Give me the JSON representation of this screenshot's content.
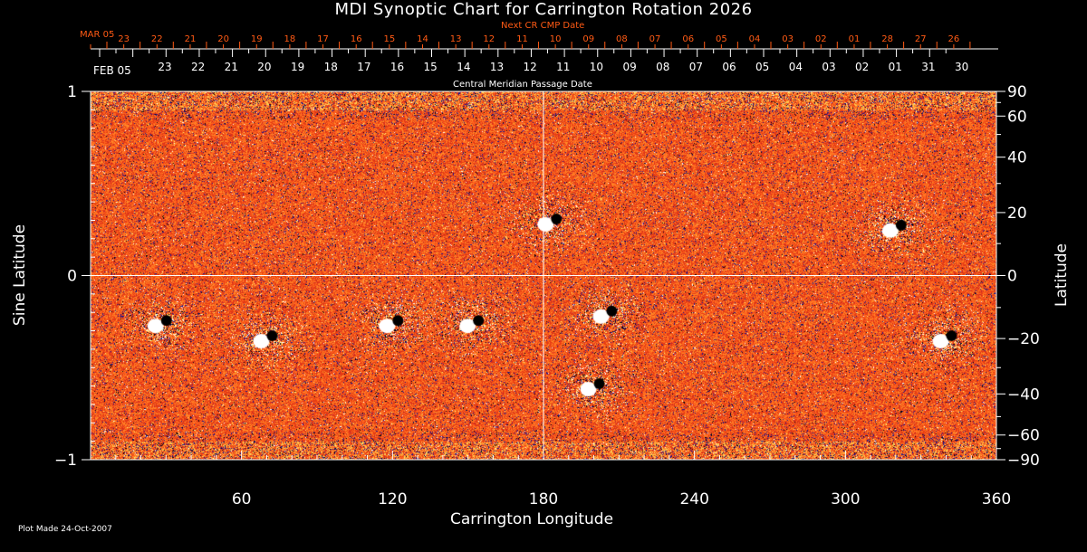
{
  "title": "MDI Synoptic Chart for Carrington Rotation 2026",
  "top_axis": {
    "next_label": "Next CR CMP Date",
    "next_dates": [
      "MAR 05",
      "23",
      "22",
      "21",
      "20",
      "19",
      "18",
      "17",
      "16",
      "15",
      "14",
      "13",
      "12",
      "11",
      "10",
      "09",
      "08",
      "07",
      "06",
      "05",
      "04",
      "03",
      "02",
      "01",
      "28",
      "27",
      "26"
    ],
    "cmp_label": "Central Meridian Passage Date",
    "cmp_dates": [
      "FEB 05",
      "23",
      "22",
      "21",
      "20",
      "19",
      "18",
      "17",
      "16",
      "15",
      "14",
      "13",
      "12",
      "11",
      "10",
      "09",
      "08",
      "07",
      "06",
      "05",
      "04",
      "03",
      "02",
      "01",
      "31",
      "30"
    ]
  },
  "footer": "Plot Made 24-Oct-2007",
  "colors": {
    "next_axis": "#ff5a14",
    "background": "#000000",
    "field_base": "#ff5a14",
    "positive": "#ffffff",
    "negative": "#000080"
  },
  "chart_data": {
    "type": "heatmap",
    "title": "MDI Synoptic Chart for Carrington Rotation 2026",
    "xlabel": "Carrington Longitude",
    "ylabel_left": "Sine Latitude",
    "ylabel_right": "Latitude",
    "xlim": [
      0,
      360
    ],
    "ylim": [
      -1,
      1
    ],
    "x_ticks": [
      "60",
      "120",
      "180",
      "240",
      "300",
      "360"
    ],
    "y_ticks_left": [
      "1",
      "0",
      "−1"
    ],
    "y_ticks_right": [
      "90",
      "60",
      "40",
      "20",
      "0",
      "−20",
      "−40",
      "−60",
      "−90"
    ],
    "grid": "crosshair at longitude 180 and latitude 0",
    "active_regions": [
      {
        "lon": 183,
        "lat": 17
      },
      {
        "lon": 120,
        "lat": -15
      },
      {
        "lon": 152,
        "lat": -15
      },
      {
        "lon": 200,
        "lat": -37
      },
      {
        "lon": 205,
        "lat": -12
      },
      {
        "lon": 70,
        "lat": -20
      },
      {
        "lon": 28,
        "lat": -15
      },
      {
        "lon": 340,
        "lat": -20
      },
      {
        "lon": 320,
        "lat": 15
      }
    ]
  }
}
